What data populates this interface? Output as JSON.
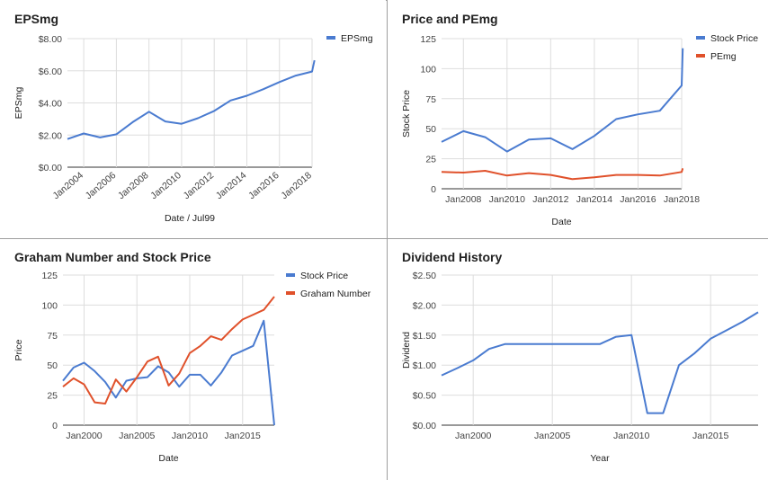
{
  "chart_data": [
    {
      "type": "line",
      "title": "EPSmg",
      "xlabel": "Date / Jul99",
      "ylabel": "EPSmg",
      "x_ticks": [
        "Jan2004",
        "Jan2006",
        "Jan2008",
        "Jan2010",
        "Jan2012",
        "Jan2014",
        "Jan2016",
        "Jan2018"
      ],
      "y_ticks": [
        "$0.00",
        "$2.00",
        "$4.00",
        "$6.00",
        "$8.00"
      ],
      "xlim": [
        2003.0,
        2018.0
      ],
      "ylim": [
        0,
        8
      ],
      "grid": true,
      "legend": "right",
      "series": [
        {
          "name": "EPSmg",
          "color": "#4a7bd0",
          "x": [
            2003,
            2004,
            2005,
            2006,
            2007,
            2008,
            2009,
            2010,
            2011,
            2012,
            2013,
            2014,
            2015,
            2016,
            2017,
            2018,
            2018.15
          ],
          "values": [
            1.75,
            2.1,
            1.85,
            2.05,
            2.8,
            3.45,
            2.85,
            2.7,
            3.05,
            3.5,
            4.15,
            4.45,
            4.85,
            5.3,
            5.7,
            5.95,
            6.65
          ]
        }
      ]
    },
    {
      "type": "line",
      "title": "Price and PEmg",
      "xlabel": "Date",
      "ylabel": "Stock Price",
      "x_ticks": [
        "Jan2008",
        "Jan2010",
        "Jan2012",
        "Jan2014",
        "Jan2016",
        "Jan2018"
      ],
      "y_ticks": [
        "0",
        "25",
        "50",
        "75",
        "100",
        "125"
      ],
      "xlim": [
        2007.0,
        2018.0
      ],
      "ylim": [
        0,
        125
      ],
      "grid": true,
      "legend": "right",
      "series": [
        {
          "name": "Stock Price",
          "color": "#4a7bd0",
          "x": [
            2007,
            2008,
            2009,
            2010,
            2011,
            2012,
            2013,
            2014,
            2015,
            2016,
            2017,
            2018,
            2018.05
          ],
          "values": [
            39,
            48,
            43,
            31,
            41,
            42,
            33,
            44,
            58,
            62,
            65,
            86,
            117
          ]
        },
        {
          "name": "PEmg",
          "color": "#e0512b",
          "x": [
            2007,
            2008,
            2009,
            2010,
            2011,
            2012,
            2013,
            2014,
            2015,
            2016,
            2017,
            2018,
            2018.05
          ],
          "values": [
            14,
            13.5,
            15,
            11,
            13,
            11.5,
            8,
            9.5,
            11.5,
            11.5,
            11,
            14,
            17
          ]
        }
      ]
    },
    {
      "type": "line",
      "title": "Graham Number and Stock Price",
      "xlabel": "Date",
      "ylabel": "Price",
      "x_ticks": [
        "Jan2000",
        "Jan2005",
        "Jan2010",
        "Jan2015"
      ],
      "y_ticks": [
        "0",
        "25",
        "50",
        "75",
        "100",
        "125"
      ],
      "xlim": [
        1998.0,
        2018.0
      ],
      "ylim": [
        0,
        125
      ],
      "grid": true,
      "legend": "right",
      "series": [
        {
          "name": "Stock Price",
          "color": "#4a7bd0",
          "x": [
            1998,
            1999,
            2000,
            2001,
            2002,
            2003,
            2004,
            2005,
            2006,
            2007,
            2008,
            2009,
            2010,
            2011,
            2012,
            2013,
            2014,
            2015,
            2016,
            2017,
            2018
          ],
          "values": [
            37,
            48,
            52,
            45,
            36,
            23,
            37,
            39,
            40,
            49,
            44,
            32,
            42,
            42,
            33,
            44,
            58,
            62,
            66,
            87,
            0
          ]
        },
        {
          "name": "Graham Number",
          "color": "#e0512b",
          "x": [
            1998,
            1999,
            2000,
            2001,
            2002,
            2003,
            2004,
            2005,
            2006,
            2007,
            2008,
            2009,
            2010,
            2011,
            2012,
            2013,
            2014,
            2015,
            2016,
            2017,
            2018
          ],
          "values": [
            32,
            39,
            34,
            19,
            18,
            38,
            28,
            40,
            53,
            57,
            33,
            43,
            60,
            66,
            74,
            71,
            80,
            88,
            92,
            96,
            107
          ]
        }
      ]
    },
    {
      "type": "line",
      "title": "Dividend History",
      "xlabel": "Year",
      "ylabel": "Dividend",
      "x_ticks": [
        "Jan2000",
        "Jan2005",
        "Jan2010",
        "Jan2015"
      ],
      "y_ticks": [
        "$0.00",
        "$0.50",
        "$1.00",
        "$1.50",
        "$2.00",
        "$2.50"
      ],
      "xlim": [
        1998.0,
        2018.0
      ],
      "ylim": [
        0,
        2.5
      ],
      "grid": true,
      "legend": "none",
      "series": [
        {
          "name": "",
          "color": "#4a7bd0",
          "x": [
            1998,
            1999,
            2000,
            2001,
            2002,
            2003,
            2004,
            2005,
            2006,
            2007,
            2008,
            2009,
            2010,
            2011,
            2012,
            2013,
            2014,
            2015,
            2016,
            2017,
            2018
          ],
          "values": [
            0.83,
            0.95,
            1.08,
            1.27,
            1.35,
            1.35,
            1.35,
            1.35,
            1.35,
            1.35,
            1.35,
            1.47,
            1.5,
            0.2,
            0.2,
            1.0,
            1.2,
            1.44,
            1.58,
            1.72,
            1.88
          ]
        }
      ]
    }
  ]
}
